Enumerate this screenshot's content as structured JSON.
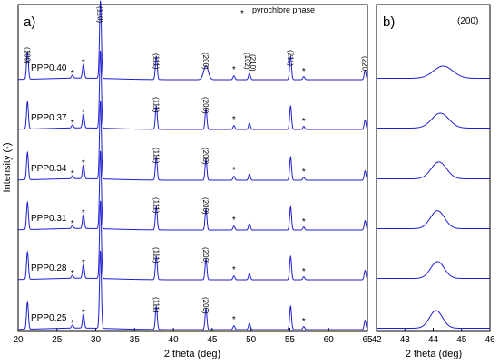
{
  "chart_data": [
    {
      "panel": "a)",
      "type": "line",
      "xlabel": "2 theta (deg)",
      "ylabel": "Intensity (-)",
      "xlim": [
        20,
        65
      ],
      "x_ticks": [
        "20",
        "25",
        "30",
        "35",
        "40",
        "45",
        "50",
        "55",
        "60",
        "65"
      ],
      "legend": "pyrochlore phase",
      "legend_marker": "*",
      "line_color": "#1f1fd2",
      "series": [
        {
          "name": "PPP0.40",
          "hkl": [
            "(100)",
            "(110)",
            "(111)",
            "(200)",
            "(102)",
            "(210)",
            "(211)",
            "(220)"
          ]
        },
        {
          "name": "PPP0.37",
          "hkl": [
            "(111)",
            "(200)"
          ]
        },
        {
          "name": "PPP0.34",
          "hkl": [
            "(111)",
            "(200)"
          ]
        },
        {
          "name": "PPP0.31",
          "hkl": [
            "(111)",
            "(200)"
          ]
        },
        {
          "name": "PPP0.28",
          "hkl": [
            "(111)",
            "(200)"
          ]
        },
        {
          "name": "PPP0.25",
          "hkl": [
            "(111)",
            "(200)"
          ]
        }
      ],
      "peaks": [
        {
          "two_theta": 21.2,
          "hkl": "(100)",
          "rel_height": 0.35
        },
        {
          "two_theta": 30.6,
          "hkl": "(110)",
          "rel_height": 1.0
        },
        {
          "two_theta": 37.8,
          "hkl": "(111)",
          "rel_height": 0.3
        },
        {
          "two_theta": 44.2,
          "hkl": "(200)",
          "rel_height": 0.27
        },
        {
          "two_theta": 49.8,
          "hkl": "(102) (210)",
          "rel_height": 0.08
        },
        {
          "two_theta": 55.1,
          "hkl": "(211)",
          "rel_height": 0.3
        },
        {
          "two_theta": 64.7,
          "hkl": "(220)",
          "rel_height": 0.12
        }
      ],
      "pyrochlore_peaks": [
        {
          "two_theta": 27.0,
          "rel_height": 0.04
        },
        {
          "two_theta": 28.4,
          "rel_height": 0.18
        },
        {
          "two_theta": 47.8,
          "rel_height": 0.05
        },
        {
          "two_theta": 56.8,
          "rel_height": 0.04
        }
      ]
    },
    {
      "panel": "b)",
      "type": "line",
      "title": "(200)",
      "xlabel": "2 theta (deg)",
      "xlim": [
        42,
        46
      ],
      "x_ticks": [
        "42",
        "43",
        "44",
        "45",
        "46"
      ],
      "line_color": "#1f1fd2",
      "series": [
        {
          "name": "PPP0.40",
          "peak_center": 44.35,
          "rel_height": 0.45,
          "width": 0.34
        },
        {
          "name": "PPP0.37",
          "peak_center": 44.25,
          "rel_height": 0.55,
          "width": 0.3
        },
        {
          "name": "PPP0.34",
          "peak_center": 44.2,
          "rel_height": 0.62,
          "width": 0.27
        },
        {
          "name": "PPP0.31",
          "peak_center": 44.15,
          "rel_height": 0.66,
          "width": 0.25
        },
        {
          "name": "PPP0.28",
          "peak_center": 44.15,
          "rel_height": 0.62,
          "width": 0.24
        },
        {
          "name": "PPP0.25",
          "peak_center": 44.1,
          "rel_height": 0.65,
          "width": 0.23
        }
      ]
    }
  ]
}
